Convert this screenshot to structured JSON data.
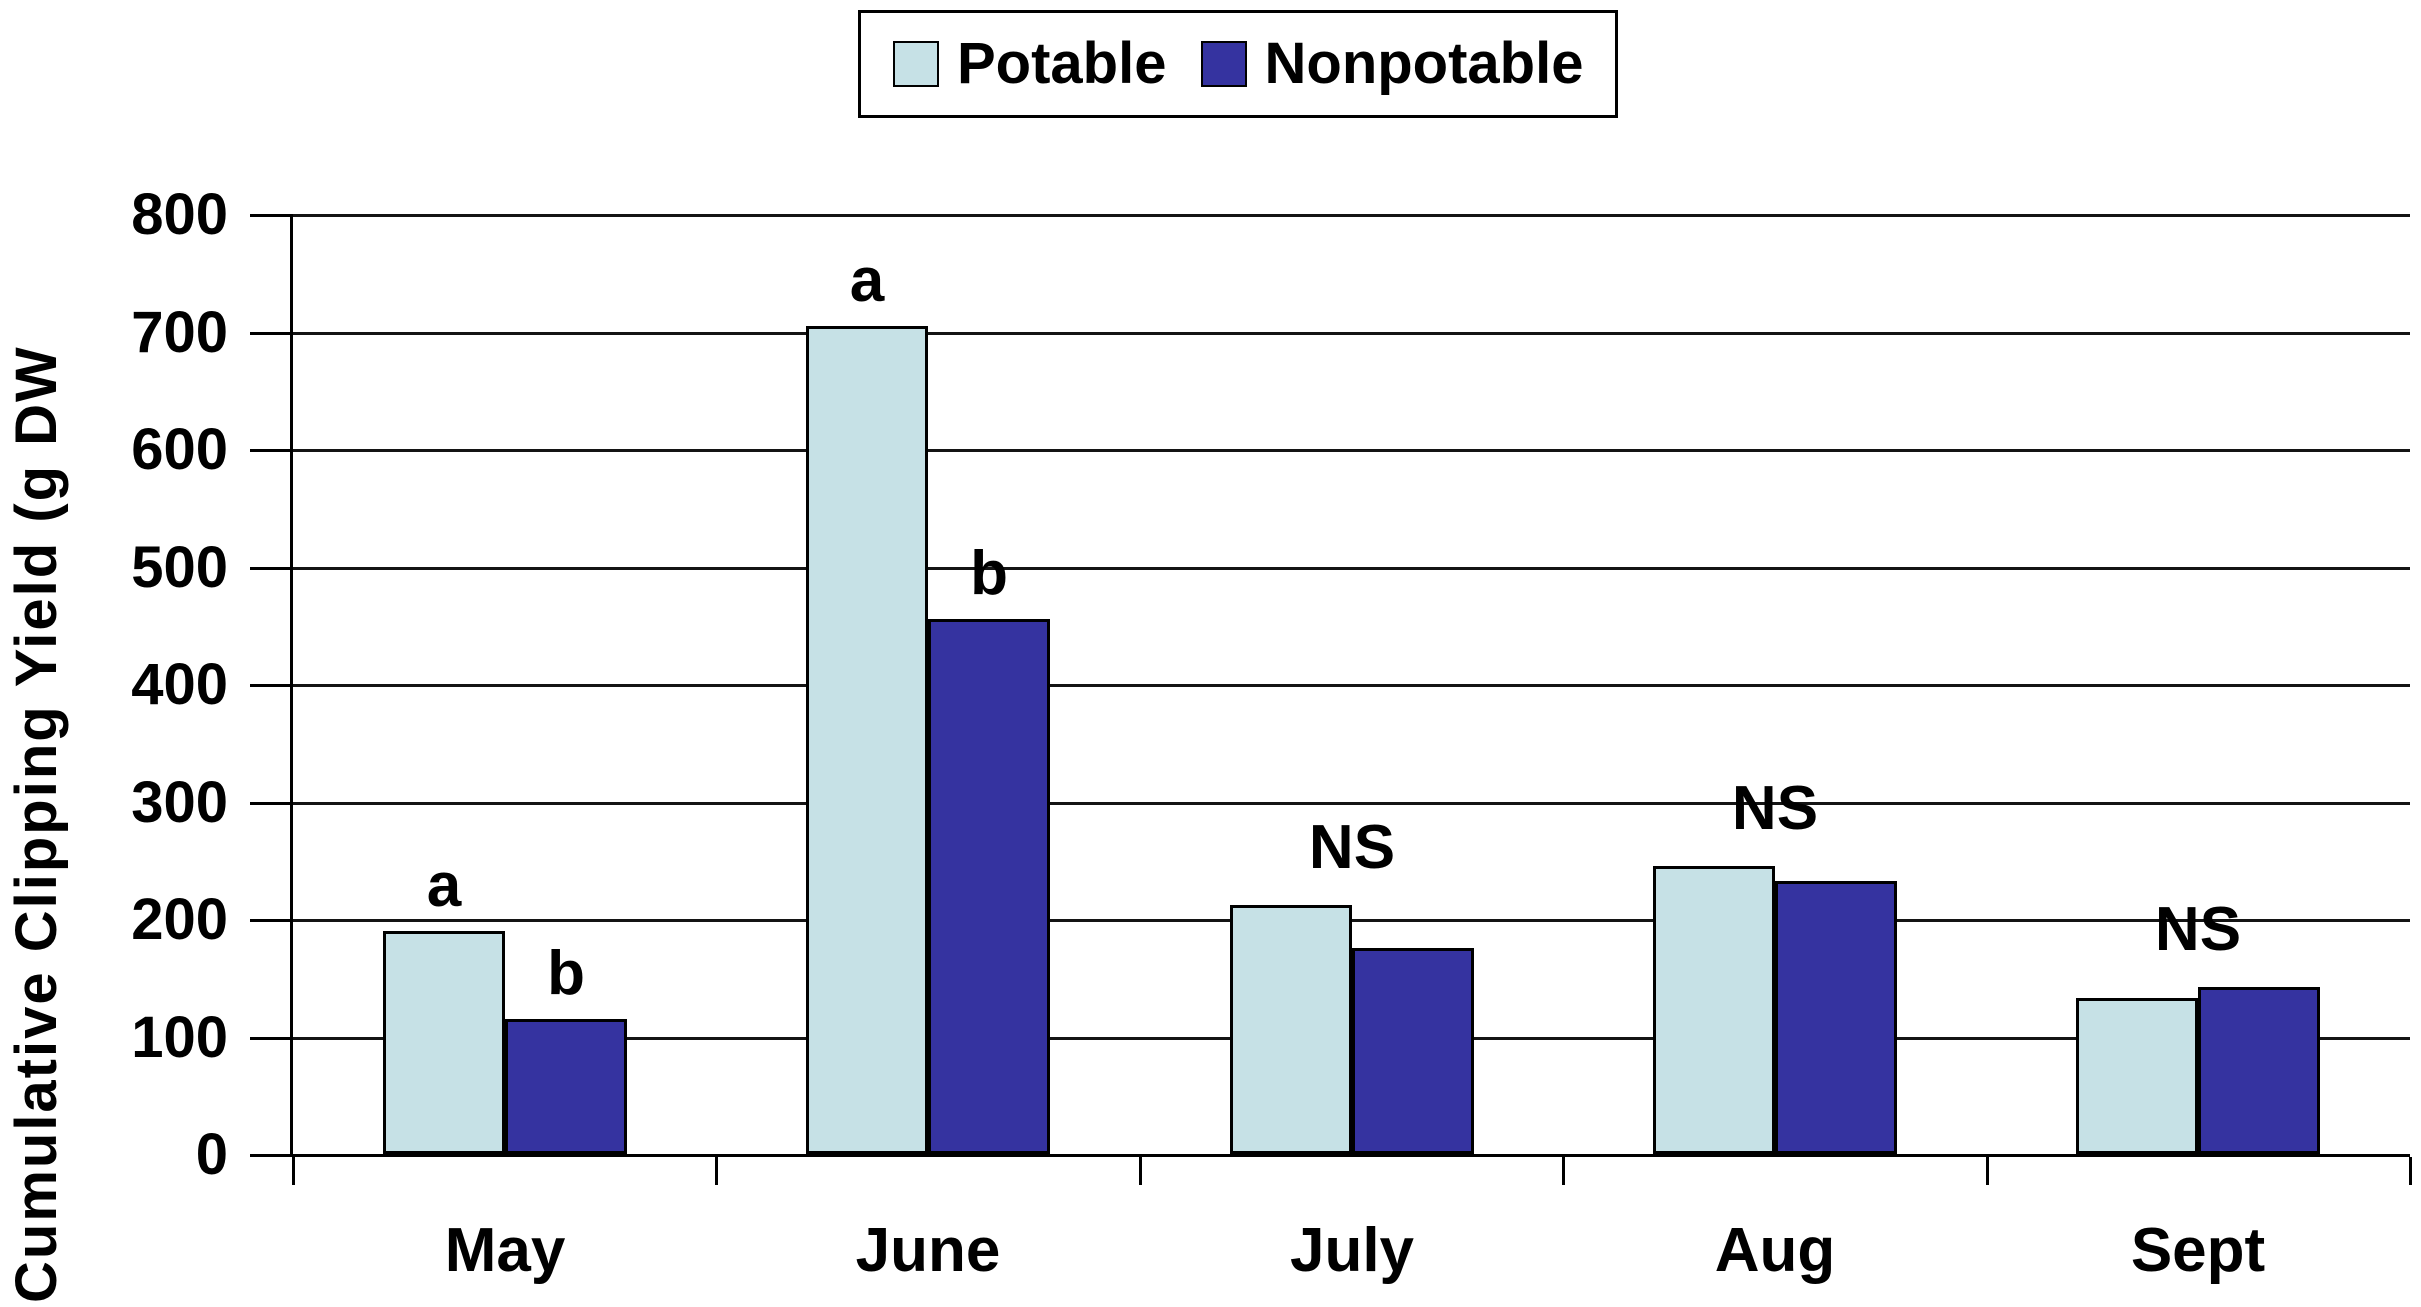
{
  "figure": {
    "background": "#ffffff"
  },
  "legend": {
    "items": [
      {
        "label": "Potable",
        "color": "#c6e1e6"
      },
      {
        "label": "Nonpotable",
        "color": "#3533a0"
      }
    ]
  },
  "chart_data": {
    "type": "bar",
    "title": "",
    "categories": [
      "May",
      "June",
      "July",
      "Aug",
      "Sept"
    ],
    "series": [
      {
        "name": "Potable",
        "color": "#c6e1e6",
        "values": [
          190,
          705,
          212,
          245,
          133
        ]
      },
      {
        "name": "Nonpotable",
        "color": "#3533a0",
        "values": [
          115,
          455,
          175,
          232,
          142
        ]
      }
    ],
    "significance_labels": [
      [
        "a",
        "b"
      ],
      [
        "a",
        "b"
      ],
      [
        "NS"
      ],
      [
        "NS"
      ],
      [
        "NS"
      ]
    ],
    "ylabel": "Cumulative Clipping Yield (g DW",
    "xlabel": "",
    "ylim": [
      0,
      800
    ],
    "yticks": [
      0,
      100,
      200,
      300,
      400,
      500,
      600,
      700,
      800
    ],
    "grid": true,
    "legend_position": "top-center",
    "bar_outline": "#000000",
    "gridline_color": "#141414",
    "axis_color": "#000000",
    "text_color": "#000000"
  }
}
